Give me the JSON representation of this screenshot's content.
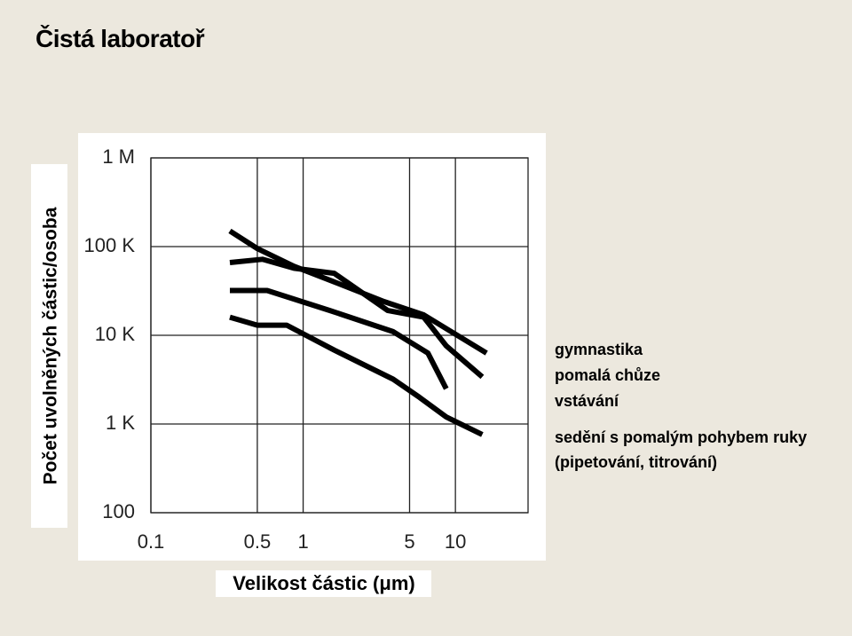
{
  "chart_data": {
    "type": "line",
    "title": "Čistá laboratoř",
    "xlabel": "Velikost částic (μm)",
    "ylabel": "Počet uvolněných částic/osoba",
    "xscale": "log",
    "yscale": "log",
    "grid": true,
    "xlim": [
      0.1,
      30
    ],
    "ylim": [
      100,
      1000000
    ],
    "xticks": [
      0.1,
      0.5,
      1,
      5,
      10
    ],
    "yticks": [
      100,
      {
        "value": 1000,
        "label": "1 K"
      },
      {
        "value": 10000,
        "label": "10 K"
      },
      {
        "value": 100000,
        "label": "100 K"
      },
      {
        "value": 1000000,
        "label": "1 M"
      }
    ],
    "series": [
      {
        "name": "gymnastika",
        "color": "#000000",
        "x": [
          0.33,
          0.5,
          0.87,
          1.6,
          3.4,
          6.2,
          16
        ],
        "values": [
          150000,
          95000,
          60000,
          40000,
          24000,
          17000,
          6300
        ]
      },
      {
        "name": "pomalá chůze",
        "color": "#000000",
        "x": [
          0.33,
          0.54,
          0.87,
          1.6,
          3.6,
          6.2,
          8.7,
          15
        ],
        "values": [
          66000,
          72000,
          57000,
          50000,
          19000,
          16000,
          7600,
          3400
        ]
      },
      {
        "name": "vstávání",
        "color": "#000000",
        "x": [
          0.33,
          0.58,
          1.5,
          3.9,
          6.6,
          8.7
        ],
        "values": [
          32000,
          32000,
          19000,
          11000,
          6300,
          2500
        ]
      },
      {
        "name": "sedění s pomalým pohybem ruky (pipetování, titrování)",
        "color": "#000000",
        "x": [
          0.33,
          0.5,
          0.78,
          1.6,
          3.9,
          5.8,
          8.7,
          15
        ],
        "values": [
          16000,
          13000,
          13000,
          6800,
          3200,
          2000,
          1200,
          760
        ]
      }
    ]
  }
}
